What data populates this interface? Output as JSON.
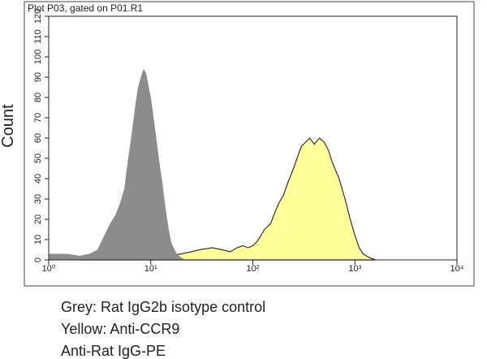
{
  "chart_data": {
    "type": "histogram-overlay",
    "title": "Plot P03, gated on P01.R1",
    "y_label": "Count",
    "x_scale": "log",
    "xlim": [
      1,
      10000
    ],
    "xticks": [
      {
        "value": 1,
        "label": "10⁰"
      },
      {
        "value": 10,
        "label": "10¹"
      },
      {
        "value": 100,
        "label": "10²"
      },
      {
        "value": 1000,
        "label": "10³"
      },
      {
        "value": 10000,
        "label": "10⁴"
      }
    ],
    "ylim": [
      0,
      120
    ],
    "yticks": [
      0,
      10,
      20,
      30,
      40,
      50,
      60,
      70,
      80,
      90,
      100,
      110,
      120
    ],
    "series": [
      {
        "color": "#ffff99",
        "outline": "#333333",
        "x": [
          2,
          5,
          10,
          15,
          20,
          25,
          30,
          40,
          50,
          60,
          70,
          80,
          90,
          100,
          110,
          120,
          130,
          150,
          160,
          180,
          200,
          220,
          250,
          280,
          300,
          330,
          360,
          400,
          450,
          500,
          550,
          600,
          700,
          800,
          900,
          1000,
          1100,
          1200,
          1400,
          1600
        ],
        "values": [
          0,
          1,
          2,
          2,
          3,
          4,
          5,
          6,
          5,
          4,
          6,
          7,
          6,
          7,
          9,
          12,
          15,
          18,
          22,
          28,
          32,
          38,
          45,
          52,
          56,
          58,
          60,
          57,
          60,
          58,
          54,
          48,
          40,
          30,
          20,
          12,
          6,
          3,
          1,
          0
        ]
      },
      {
        "color": "#8c8c8c",
        "x": [
          1,
          1.5,
          2,
          2.5,
          3,
          3.5,
          4,
          4.5,
          5,
          5.5,
          6,
          6.5,
          7,
          7.5,
          8,
          8.5,
          9,
          10,
          11,
          12,
          13,
          14,
          15,
          16,
          18,
          20,
          22
        ],
        "values": [
          3,
          3,
          2,
          3,
          5,
          12,
          18,
          22,
          28,
          35,
          50,
          62,
          75,
          85,
          90,
          94,
          92,
          80,
          65,
          50,
          38,
          25,
          15,
          8,
          3,
          1,
          0
        ]
      }
    ],
    "caption": [
      "Grey: Rat IgG2b isotype control",
      "Yellow: Anti-CCR9",
      "Anti-Rat IgG-PE"
    ]
  }
}
